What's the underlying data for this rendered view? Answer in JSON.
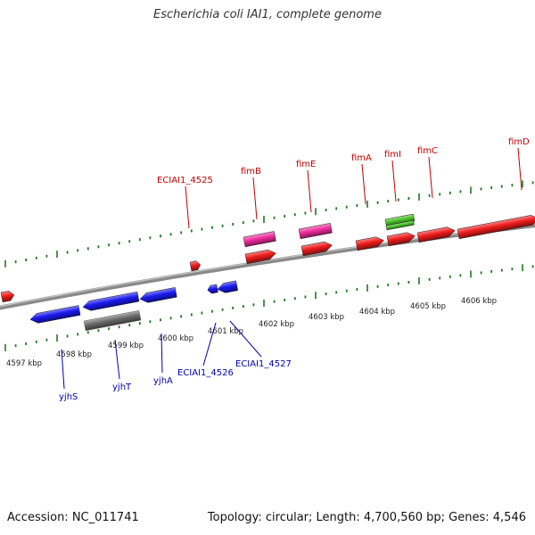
{
  "title": "Escherichia coli IAI1, complete genome",
  "footer": {
    "accession": "Accession: NC_011741",
    "summary": "Topology: circular; Length: 4,700,560 bp; Genes: 4,546"
  },
  "colors": {
    "forward_gene": "#ee1c1c",
    "reverse_gene": "#1a1aee",
    "pink_feature": "#ee2c9c",
    "green_feature": "#4cc42c",
    "gray_feature": "#6a6a6a",
    "forward_label": "#c00000",
    "reverse_label": "#0000b0",
    "backbone": "#8a8a8a",
    "tick": "#227722"
  },
  "scale_labels": [
    "4597 kbp",
    "4598 kbp",
    "4599 kbp",
    "4600 kbp",
    "4601 kbp",
    "4602 kbp",
    "4603 kbp",
    "4604 kbp",
    "4605 kbp",
    "4606 kbp"
  ],
  "forward_labels": [
    "ECIAI1_4525",
    "fimB",
    "fimE",
    "fimA",
    "fimI",
    "fimC",
    "fimD"
  ],
  "reverse_labels": [
    "yjhS",
    "yjhT",
    "yjhA",
    "ECIAI1_4526",
    "ECIAI1_4527"
  ]
}
